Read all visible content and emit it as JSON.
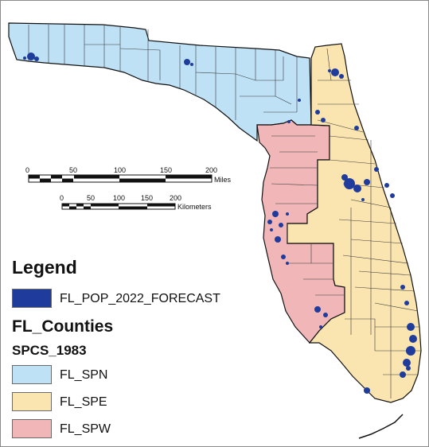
{
  "legend": {
    "title": "Legend",
    "population_layer": {
      "label": "FL_POP_2022_FORECAST",
      "color": "#1f3b9c"
    },
    "counties_title": "FL_Counties",
    "zones_title": "SPCS_1983",
    "zones": [
      {
        "label": "FL_SPN",
        "color": "#bfe1f6"
      },
      {
        "label": "FL_SPE",
        "color": "#fae4b0"
      },
      {
        "label": "FL_SPW",
        "color": "#f0b6b8"
      }
    ]
  },
  "scale_bars": {
    "miles": {
      "ticks": [
        "0",
        "50",
        "100",
        "150",
        "200"
      ],
      "unit": "Miles"
    },
    "kilometers": {
      "ticks": [
        "0",
        "50",
        "100",
        "150",
        "200"
      ],
      "unit": "Kilometers"
    }
  },
  "colors": {
    "county_border": "#3a3a3a",
    "outline": "#111111",
    "urban": "#1f3b9c"
  }
}
